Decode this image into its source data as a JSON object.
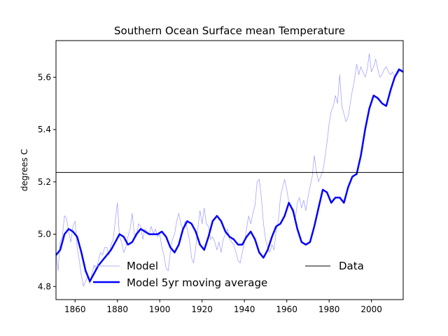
{
  "chart_data": {
    "type": "line",
    "title": "Southern Ocean Surface mean Temperature",
    "xlabel": "",
    "ylabel": "degrees C",
    "xlim": [
      1851,
      2015
    ],
    "ylim": [
      4.75,
      5.74
    ],
    "xticks": [
      1860,
      1880,
      1900,
      1920,
      1940,
      1960,
      1980,
      2000
    ],
    "yticks": [
      4.8,
      5.0,
      5.2,
      5.4,
      5.6
    ],
    "grid": false,
    "legend_placement": "lower",
    "series": [
      {
        "name": "Model",
        "color": "#0000ff",
        "style": "thin",
        "x": [
          1851,
          1852,
          1853,
          1854,
          1855,
          1856,
          1857,
          1858,
          1859,
          1860,
          1861,
          1862,
          1863,
          1864,
          1865,
          1866,
          1867,
          1868,
          1869,
          1870,
          1871,
          1872,
          1873,
          1874,
          1875,
          1876,
          1877,
          1878,
          1879,
          1880,
          1881,
          1882,
          1883,
          1884,
          1885,
          1886,
          1887,
          1888,
          1889,
          1890,
          1891,
          1892,
          1893,
          1894,
          1895,
          1896,
          1897,
          1898,
          1899,
          1900,
          1901,
          1902,
          1903,
          1904,
          1905,
          1906,
          1907,
          1908,
          1909,
          1910,
          1911,
          1912,
          1913,
          1914,
          1915,
          1916,
          1917,
          1918,
          1919,
          1920,
          1921,
          1922,
          1923,
          1924,
          1925,
          1926,
          1927,
          1928,
          1929,
          1930,
          1931,
          1932,
          1933,
          1934,
          1935,
          1936,
          1937,
          1938,
          1939,
          1940,
          1941,
          1942,
          1943,
          1944,
          1945,
          1946,
          1947,
          1948,
          1949,
          1950,
          1951,
          1952,
          1953,
          1954,
          1955,
          1956,
          1957,
          1958,
          1959,
          1960,
          1961,
          1962,
          1963,
          1964,
          1965,
          1966,
          1967,
          1968,
          1969,
          1970,
          1971,
          1972,
          1973,
          1974,
          1975,
          1976,
          1977,
          1978,
          1979,
          1980,
          1981,
          1982,
          1983,
          1984,
          1985,
          1986,
          1987,
          1988,
          1989,
          1990,
          1991,
          1992,
          1993,
          1994,
          1995,
          1996,
          1997,
          1998,
          1999,
          2000,
          2001,
          2002,
          2003,
          2004,
          2005,
          2006,
          2007,
          2008,
          2009,
          2010,
          2011,
          2012,
          2013,
          2014,
          2015
        ],
        "values": [
          4.93,
          4.86,
          4.97,
          4.99,
          5.07,
          5.06,
          5.01,
          4.97,
          5.03,
          5.05,
          4.95,
          4.9,
          4.84,
          4.8,
          4.82,
          4.84,
          4.81,
          4.85,
          4.88,
          4.86,
          4.9,
          4.93,
          4.92,
          4.95,
          4.95,
          4.92,
          4.96,
          4.98,
          5.05,
          5.12,
          4.99,
          4.97,
          4.93,
          4.95,
          4.99,
          5.02,
          5.08,
          5.0,
          4.99,
          5.04,
          5.03,
          4.98,
          5.02,
          5.01,
          5.0,
          5.03,
          5.0,
          5.02,
          4.99,
          5.0,
          4.95,
          4.92,
          4.87,
          4.86,
          4.93,
          4.98,
          5.0,
          5.05,
          5.08,
          5.04,
          5.02,
          5.05,
          5.02,
          4.98,
          4.91,
          4.89,
          4.95,
          5.02,
          5.09,
          5.04,
          5.1,
          5.04,
          5.03,
          4.98,
          4.99,
          4.97,
          4.94,
          4.97,
          4.93,
          4.98,
          5.0,
          5.02,
          4.98,
          4.97,
          4.96,
          4.93,
          4.9,
          4.89,
          4.93,
          4.97,
          5.02,
          5.07,
          5.04,
          5.08,
          5.11,
          5.2,
          5.21,
          5.14,
          5.04,
          4.98,
          4.95,
          4.93,
          4.96,
          4.94,
          5.01,
          5.05,
          5.14,
          5.18,
          5.21,
          5.17,
          5.12,
          5.1,
          5.08,
          5.06,
          5.12,
          5.14,
          5.1,
          5.13,
          5.09,
          5.14,
          5.18,
          5.22,
          5.3,
          5.24,
          5.2,
          5.22,
          5.24,
          5.29,
          5.35,
          5.42,
          5.47,
          5.49,
          5.53,
          5.5,
          5.61,
          5.49,
          5.46,
          5.43,
          5.45,
          5.5,
          5.55,
          5.59,
          5.65,
          5.61,
          5.64,
          5.62,
          5.6,
          5.63,
          5.69,
          5.62,
          5.64,
          5.67,
          5.63,
          5.6,
          5.61,
          5.63,
          5.64,
          5.62,
          5.61,
          5.62,
          5.6,
          5.61,
          5.62,
          5.63,
          5.62
        ]
      },
      {
        "name": "Model 5yr moving average",
        "color": "#0000ff",
        "style": "thick",
        "x": [
          1851,
          1853,
          1855,
          1857,
          1859,
          1861,
          1863,
          1865,
          1867,
          1869,
          1871,
          1873,
          1875,
          1877,
          1879,
          1881,
          1883,
          1885,
          1887,
          1889,
          1891,
          1893,
          1895,
          1897,
          1899,
          1901,
          1903,
          1905,
          1907,
          1909,
          1911,
          1913,
          1915,
          1917,
          1919,
          1921,
          1923,
          1925,
          1927,
          1929,
          1931,
          1933,
          1935,
          1937,
          1939,
          1941,
          1943,
          1945,
          1947,
          1949,
          1951,
          1953,
          1955,
          1957,
          1959,
          1961,
          1963,
          1965,
          1967,
          1969,
          1971,
          1973,
          1975,
          1977,
          1979,
          1981,
          1983,
          1985,
          1987,
          1989,
          1991,
          1993,
          1995,
          1997,
          1999,
          2001,
          2003,
          2005,
          2007,
          2009,
          2011,
          2013,
          2015
        ],
        "values": [
          4.92,
          4.94,
          5.0,
          5.02,
          5.01,
          4.99,
          4.93,
          4.86,
          4.82,
          4.85,
          4.88,
          4.9,
          4.92,
          4.94,
          4.97,
          5.0,
          4.99,
          4.96,
          4.97,
          5.0,
          5.02,
          5.01,
          5.0,
          5.0,
          5.0,
          5.01,
          4.99,
          4.95,
          4.93,
          4.96,
          5.02,
          5.05,
          5.04,
          5.01,
          4.96,
          4.94,
          4.99,
          5.05,
          5.07,
          5.05,
          5.01,
          4.99,
          4.98,
          4.96,
          4.96,
          4.99,
          5.01,
          4.98,
          4.93,
          4.91,
          4.94,
          4.99,
          5.03,
          5.04,
          5.07,
          5.12,
          5.09,
          5.02,
          4.97,
          4.96,
          4.97,
          5.03,
          5.1,
          5.17,
          5.16,
          5.12,
          5.14,
          5.14,
          5.12,
          5.18,
          5.22,
          5.23,
          5.3,
          5.4,
          5.48,
          5.53,
          5.52,
          5.5,
          5.49,
          5.55,
          5.6,
          5.63,
          5.62
        ]
      }
    ],
    "reference_line": {
      "name": "Data",
      "y": 5.236,
      "color": "#000000"
    },
    "legend": [
      {
        "label": "Model",
        "style": "thin"
      },
      {
        "label": "Model 5yr moving average",
        "style": "thick"
      },
      {
        "label": "Data",
        "style": "reference"
      }
    ]
  }
}
